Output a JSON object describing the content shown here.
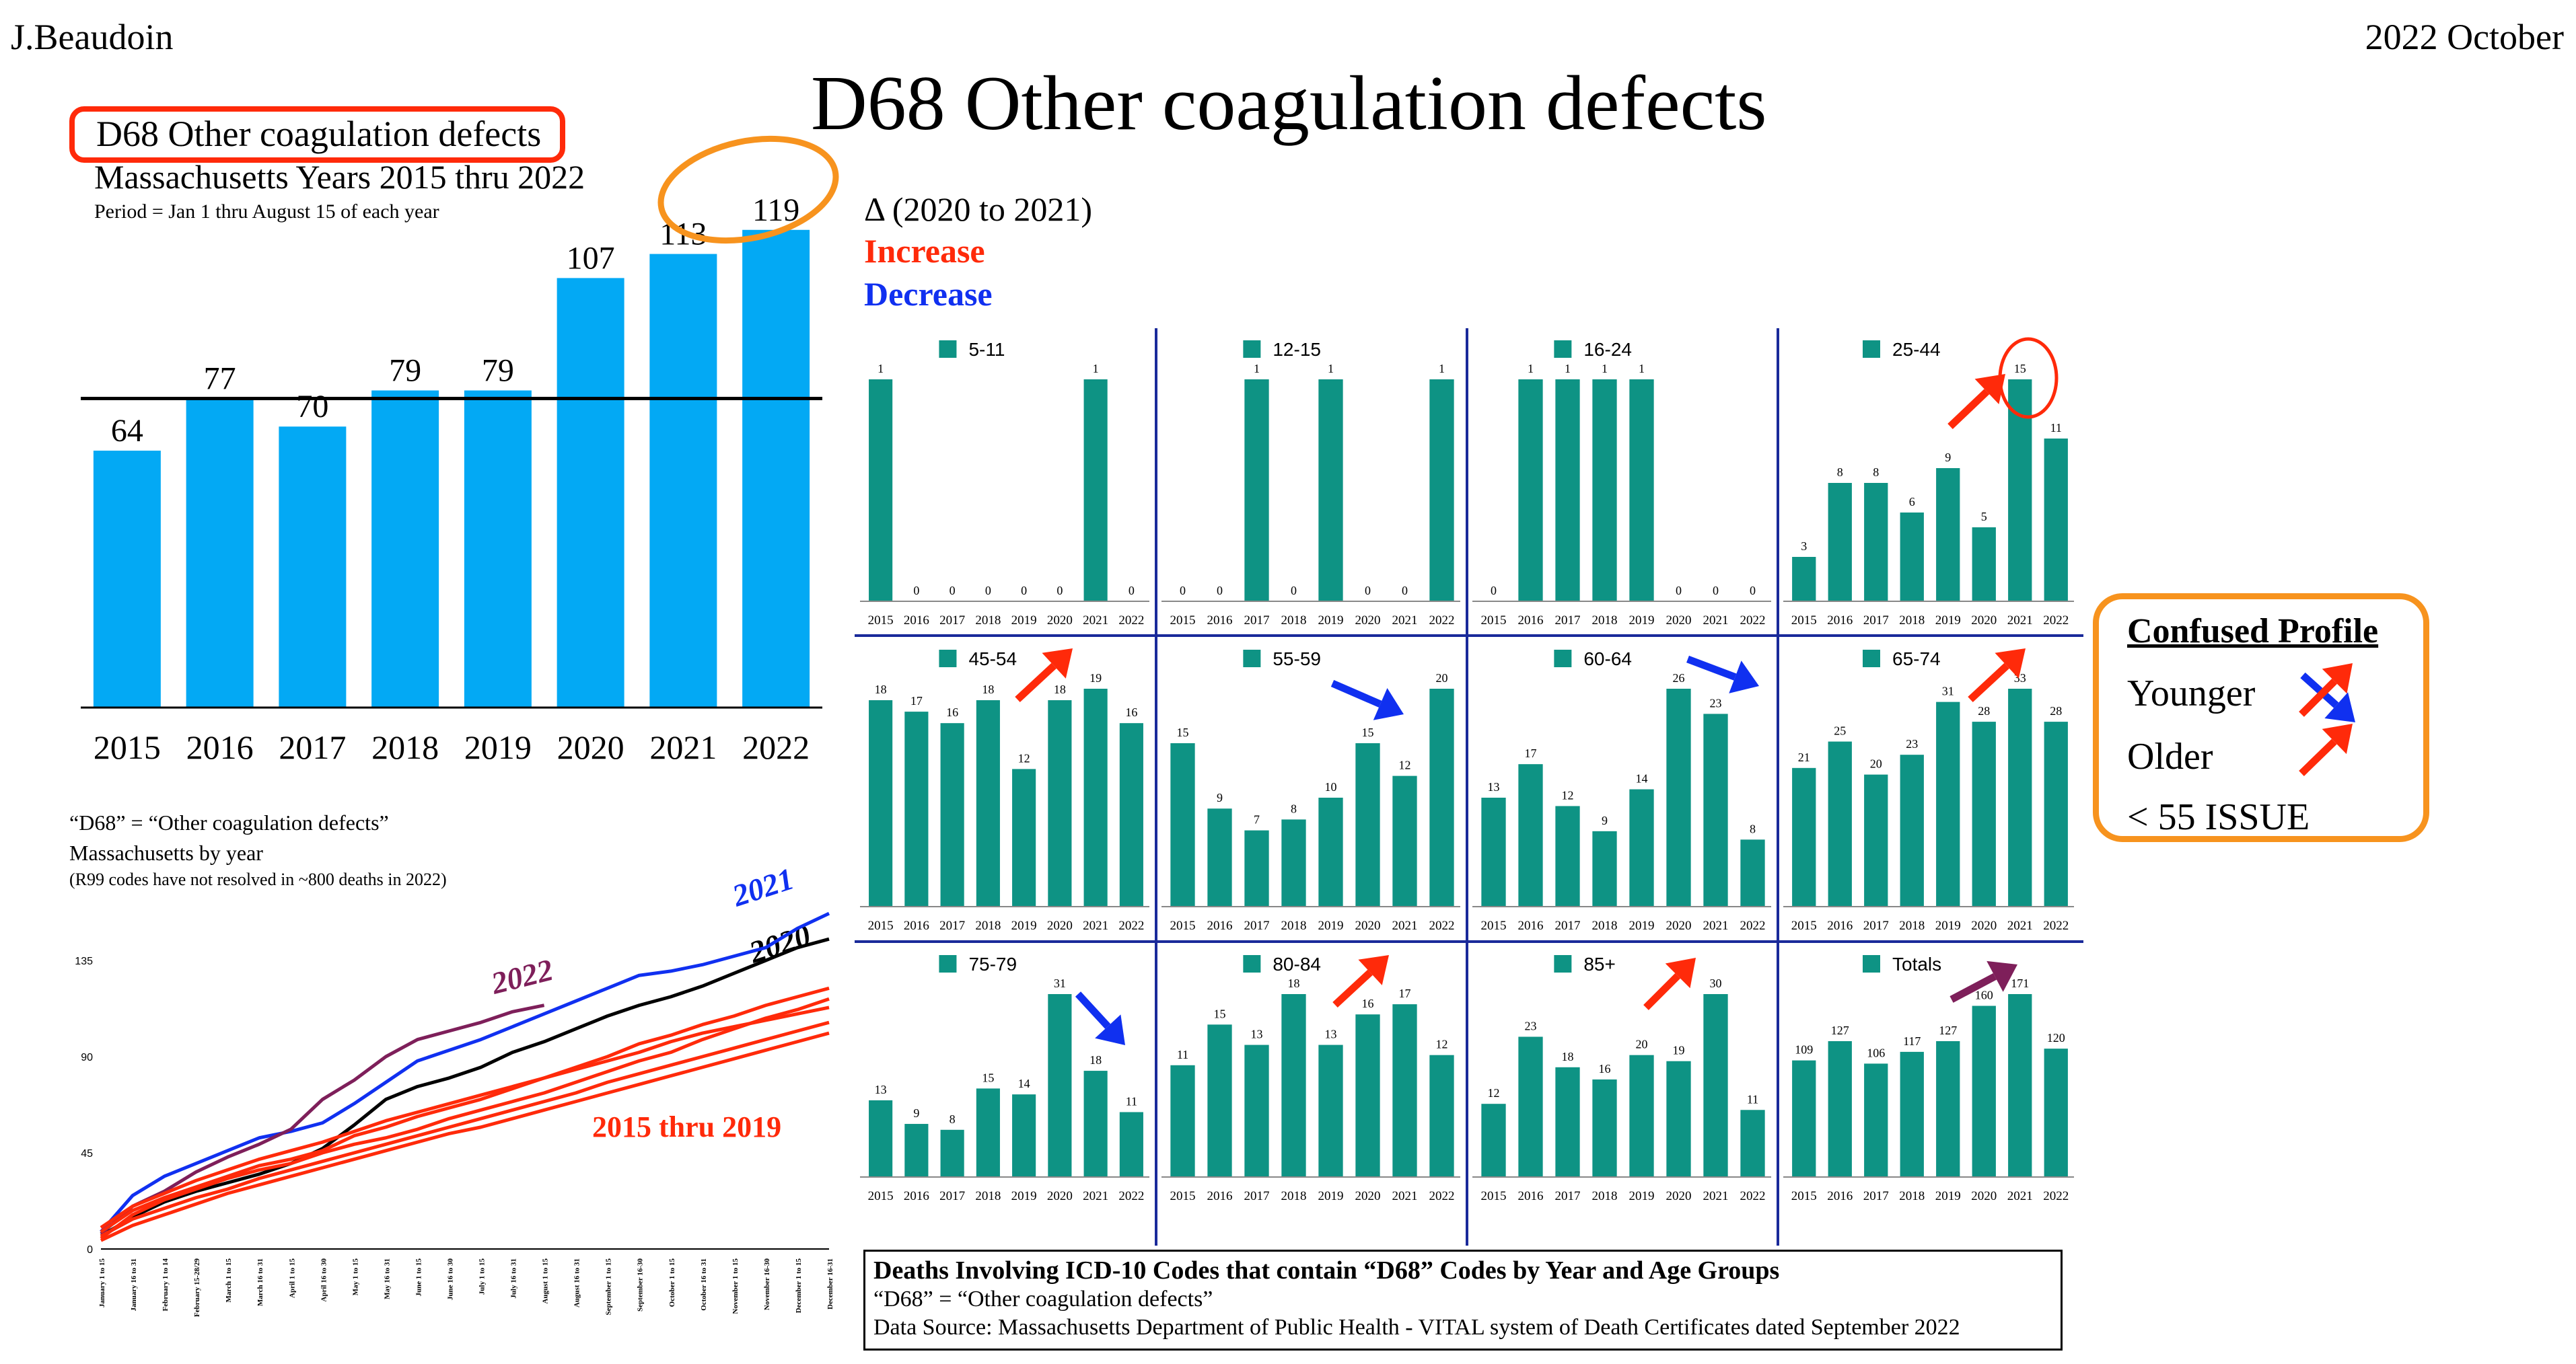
{
  "author": "J.Beaudoin",
  "date": "2022 October",
  "title": "D68 Other coagulation defects",
  "colors": {
    "bar_light": "#03A9F4",
    "bar_teal": "#0E9384",
    "increase": "#FF2A0A",
    "decrease": "#1030F0",
    "orange": "#F7931E",
    "purple": "#7E1F5A",
    "divider": "#1A2A9A"
  },
  "main_chart": {
    "boxed_title": "D68 Other coagulation defects",
    "subtitle": "Massachusetts Years 2015 thru 2022",
    "period": "Period = Jan 1 thru August 15 of each year"
  },
  "delta_legend": {
    "title": "Δ (2020 to 2021)",
    "increase": "Increase",
    "decrease": "Decrease"
  },
  "confused_profile": {
    "title": "Confused Profile",
    "younger": "Younger",
    "older": "Older",
    "issue": "< 55 ISSUE"
  },
  "line_chart_text": {
    "title1": "“D68” = “Other coagulation defects”",
    "title2": "Massachusetts by year",
    "title3": "(R99 codes have not resolved in ~800 deaths in 2022)",
    "label_2021": "2021",
    "label_2020": "2020",
    "label_2022": "2022",
    "label_2015_2019": "2015 thru 2019"
  },
  "footer": {
    "line1": "Deaths Involving ICD-10 Codes that contain “D68” Codes by Year and Age Groups",
    "line2": "“D68” = “Other coagulation defects”",
    "line3": "Data Source:  Massachusetts Department of Public Health - VITAL system of Death Certificates dated September 2022"
  },
  "chart_data": [
    {
      "type": "bar",
      "id": "main",
      "categories": [
        "2015",
        "2016",
        "2017",
        "2018",
        "2019",
        "2020",
        "2021",
        "2022"
      ],
      "values": [
        64,
        77,
        70,
        79,
        79,
        107,
        113,
        119
      ],
      "reference_line": 77,
      "ylim": [
        0,
        126
      ]
    },
    {
      "type": "bar",
      "id": "age_groups",
      "categories": [
        "2015",
        "2016",
        "2017",
        "2018",
        "2019",
        "2020",
        "2021",
        "2022"
      ],
      "panels": [
        {
          "name": "5-11",
          "values": [
            1,
            0,
            0,
            0,
            0,
            0,
            1,
            0
          ]
        },
        {
          "name": "12-15",
          "values": [
            0,
            0,
            1,
            0,
            1,
            0,
            0,
            1
          ]
        },
        {
          "name": "16-24",
          "values": [
            0,
            1,
            1,
            1,
            1,
            0,
            0,
            0
          ]
        },
        {
          "name": "25-44",
          "values": [
            3,
            8,
            8,
            6,
            9,
            5,
            15,
            11
          ]
        },
        {
          "name": "45-54",
          "values": [
            18,
            17,
            16,
            18,
            12,
            18,
            19,
            16
          ]
        },
        {
          "name": "55-59",
          "values": [
            15,
            9,
            7,
            8,
            10,
            15,
            12,
            20
          ]
        },
        {
          "name": "60-64",
          "values": [
            13,
            17,
            12,
            9,
            14,
            26,
            23,
            8
          ]
        },
        {
          "name": "65-74",
          "values": [
            21,
            25,
            20,
            23,
            31,
            28,
            33,
            28
          ]
        },
        {
          "name": "75-79",
          "values": [
            13,
            9,
            8,
            15,
            14,
            31,
            18,
            11
          ]
        },
        {
          "name": "80-84",
          "values": [
            11,
            15,
            13,
            18,
            13,
            16,
            17,
            12
          ]
        },
        {
          "name": "85+",
          "values": [
            12,
            23,
            18,
            16,
            20,
            19,
            30,
            11
          ]
        },
        {
          "name": "Totals",
          "values": [
            109,
            127,
            106,
            117,
            127,
            160,
            171,
            120
          ]
        }
      ]
    },
    {
      "type": "line",
      "id": "cumulative",
      "x_labels": [
        "January 1 to 15",
        "January 16 to 31",
        "February 1 to 14",
        "February 15-28/29",
        "March 1 to 15",
        "March 16 to 31",
        "April 1 to 15",
        "April 16 to 30",
        "May 1 to 15",
        "May 16 to 31",
        "June 1 to 15",
        "June 16 to 30",
        "July 1 to 15",
        "July 16 to 31",
        "August 1 to 15",
        "August 16 to 31",
        "September 1 to 15",
        "September 16-30",
        "October 1 to 15",
        "October 16 to 31",
        "November 1 to 15",
        "November 16-30",
        "December 1 to 15",
        "December 16-31"
      ],
      "yticks": [
        0,
        45,
        90,
        135
      ],
      "ylim": [
        0,
        160
      ],
      "series": [
        {
          "name": "2021",
          "color": "#1030F0",
          "values": [
            8,
            25,
            34,
            40,
            46,
            52,
            55,
            59,
            68,
            78,
            88,
            93,
            98,
            104,
            110,
            116,
            122,
            128,
            130,
            133,
            137,
            141,
            150,
            157
          ]
        },
        {
          "name": "2020",
          "color": "#000000",
          "values": [
            6,
            15,
            22,
            27,
            31,
            35,
            40,
            47,
            58,
            70,
            76,
            80,
            85,
            92,
            97,
            103,
            109,
            114,
            118,
            123,
            129,
            135,
            141,
            145
          ]
        },
        {
          "name": "2022",
          "color": "#7E1F5A",
          "values": [
            7,
            20,
            27,
            36,
            43,
            49,
            56,
            70,
            79,
            90,
            98,
            102,
            106,
            111,
            114
          ]
        },
        {
          "name": "",
          "color": "#FF2A0A",
          "values": [
            8,
            18,
            24,
            29,
            34,
            39,
            42,
            46,
            53,
            57,
            62,
            66,
            70,
            75,
            80,
            85,
            90,
            96,
            100,
            105,
            109,
            114,
            118,
            122
          ]
        },
        {
          "name": "",
          "color": "#FF2A0A",
          "values": [
            5,
            16,
            23,
            28,
            33,
            37,
            40,
            45,
            49,
            52,
            56,
            61,
            65,
            69,
            73,
            78,
            83,
            88,
            92,
            98,
            103,
            108,
            112,
            117
          ]
        },
        {
          "name": "",
          "color": "#FF2A0A",
          "values": [
            10,
            20,
            26,
            32,
            37,
            42,
            46,
            50,
            55,
            60,
            64,
            68,
            72,
            76,
            80,
            84,
            88,
            92,
            97,
            101,
            104,
            107,
            110,
            113
          ]
        },
        {
          "name": "",
          "color": "#FF2A0A",
          "values": [
            6,
            14,
            19,
            24,
            28,
            33,
            37,
            41,
            45,
            49,
            53,
            57,
            61,
            65,
            69,
            73,
            78,
            82,
            86,
            90,
            94,
            98,
            102,
            106
          ]
        },
        {
          "name": "",
          "color": "#FF2A0A",
          "values": [
            4,
            11,
            16,
            21,
            26,
            30,
            34,
            38,
            42,
            46,
            50,
            54,
            57,
            61,
            65,
            69,
            73,
            77,
            81,
            85,
            89,
            93,
            97,
            101
          ]
        }
      ]
    }
  ]
}
